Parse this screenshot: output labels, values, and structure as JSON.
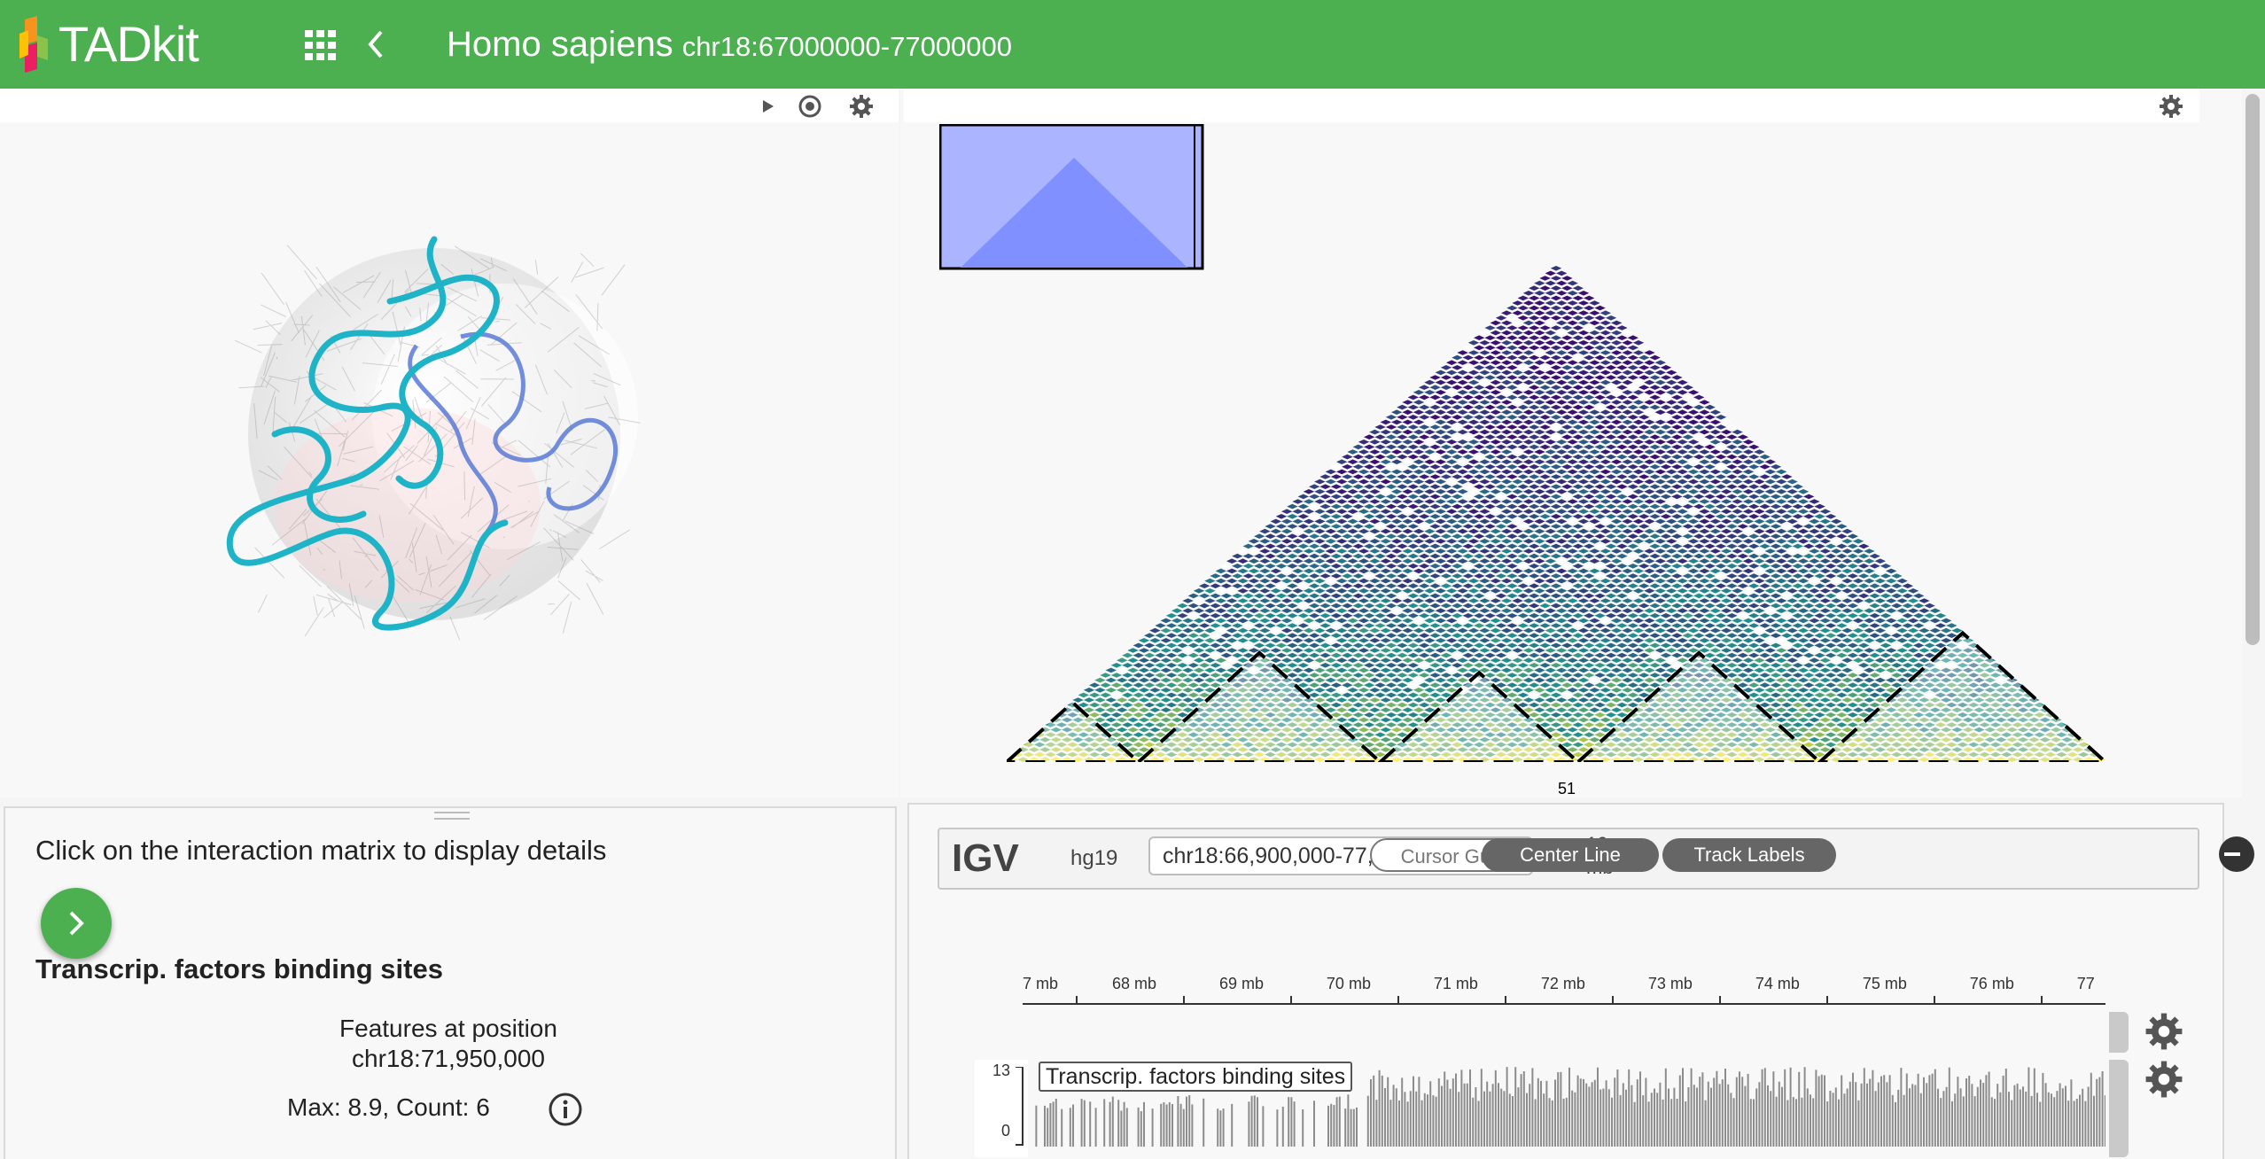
{
  "app": {
    "name": "TADkit",
    "brand_color": "#4caf50"
  },
  "header": {
    "species": "Homo sapiens",
    "region": "chr18:67000000-77000000",
    "apps_icon": "grid-icon",
    "back_icon": "chevron-left-icon"
  },
  "viewer3d": {
    "toolbar": [
      "play-icon",
      "target-icon",
      "gear-icon"
    ]
  },
  "matrix": {
    "toolbar": [
      "gear-icon"
    ],
    "bin_label": "51",
    "colors": {
      "low": "#3b0f70",
      "mid": "#21908d",
      "high": "#fde725",
      "tad_boundary": "#000000",
      "overview_fill": "#aab4ff"
    }
  },
  "details": {
    "instruction": "Click on the interaction matrix to display details",
    "section_title": "Transcrip. factors binding sites",
    "features_line1": "Features at position",
    "features_line2": "chr18:71,950,000",
    "stats": "Max: 8.9, Count: 6"
  },
  "igv": {
    "logo": "IGV",
    "genome": "hg19",
    "locus": "chr18:66,900,000-77,000,000",
    "window_value": "10",
    "window_unit": "mb",
    "buttons": {
      "cursor_guide": "Cursor Guide",
      "center_line": "Center Line",
      "track_labels": "Track Labels"
    },
    "ruler_ticks": [
      "7 mb",
      "68 mb",
      "69 mb",
      "70 mb",
      "71 mb",
      "72 mb",
      "73 mb",
      "74 mb",
      "75 mb",
      "76 mb",
      "77"
    ],
    "track": {
      "name": "Transcrip. factors binding sites",
      "axis_max": "13",
      "axis_min": "0"
    }
  }
}
